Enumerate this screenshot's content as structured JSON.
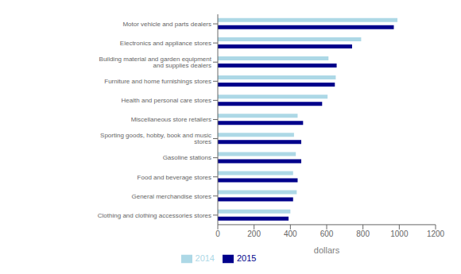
{
  "chart_data": {
    "type": "bar",
    "orientation": "horizontal",
    "categories": [
      "Motor vehicle and parts dealers",
      "Electronics and appliance stores",
      "Building material and garden equipment and supplies dealers",
      "Furniture and home furnishings stores",
      "Health and personal care stores",
      "Miscellaneous store retailers",
      "Sporting goods, hobby, book and music stores",
      "Gasoline stations",
      "Food and beverage stores",
      "General merchandise stores",
      "Clothing and clothing accessories stores"
    ],
    "series": [
      {
        "name": "2014",
        "color": "#add8e6",
        "values": [
          990,
          790,
          610,
          650,
          605,
          440,
          420,
          430,
          415,
          435,
          400
        ]
      },
      {
        "name": "2015",
        "color": "#00008b",
        "values": [
          970,
          740,
          655,
          645,
          575,
          470,
          460,
          460,
          440,
          415,
          390
        ]
      }
    ],
    "xlabel": "dollars",
    "xlim": [
      0,
      1200
    ],
    "xticks": [
      0,
      200,
      400,
      600,
      800,
      1000,
      1200
    ],
    "grid": false,
    "legend": "bottom"
  }
}
